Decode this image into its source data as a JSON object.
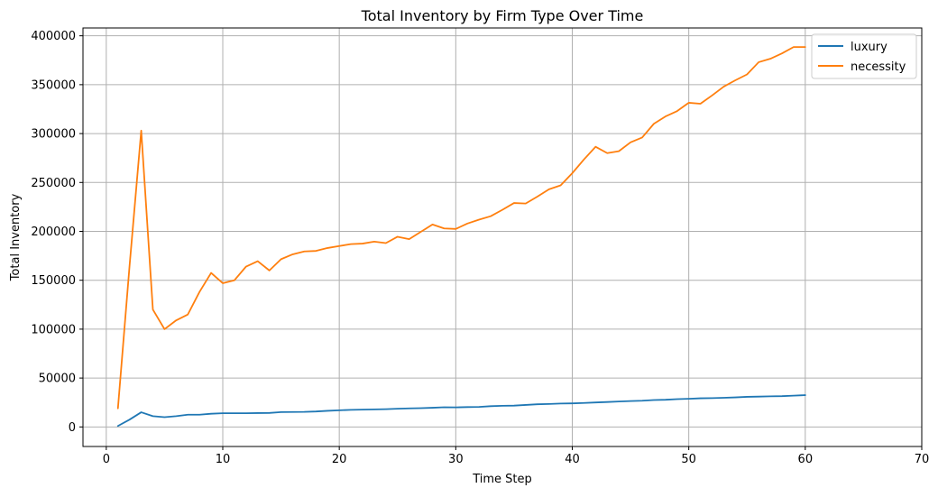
{
  "chart_data": {
    "type": "line",
    "title": "Total Inventory by Firm Type Over Time",
    "xlabel": "Time Step",
    "ylabel": "Total Inventory",
    "xlim": [
      -2,
      70
    ],
    "ylim": [
      -20000,
      408000
    ],
    "xticks": [
      0,
      10,
      20,
      30,
      40,
      50,
      60,
      70
    ],
    "yticks": [
      0,
      50000,
      100000,
      150000,
      200000,
      250000,
      300000,
      350000,
      400000
    ],
    "grid": true,
    "legend_position": "top-right",
    "series": [
      {
        "name": "luxury",
        "color": "#1f77b4",
        "x": [
          1,
          2,
          3,
          4,
          5,
          6,
          7,
          8,
          9,
          10,
          11,
          12,
          13,
          14,
          15,
          16,
          17,
          18,
          19,
          20,
          21,
          22,
          23,
          24,
          25,
          26,
          27,
          28,
          29,
          30,
          31,
          32,
          33,
          34,
          35,
          36,
          37,
          38,
          39,
          40,
          41,
          42,
          43,
          44,
          45,
          46,
          47,
          48,
          49,
          50,
          51,
          52,
          53,
          54,
          55,
          56,
          57,
          58,
          59,
          60
        ],
        "values": [
          1000,
          7500,
          15000,
          11000,
          10000,
          11000,
          12500,
          12500,
          13500,
          14000,
          14000,
          14000,
          14200,
          14300,
          15200,
          15300,
          15400,
          15800,
          16500,
          17000,
          17500,
          17700,
          17900,
          18200,
          18600,
          19000,
          19200,
          19600,
          20100,
          20000,
          20300,
          20500,
          21200,
          21600,
          21800,
          22500,
          23200,
          23500,
          23900,
          24100,
          24500,
          25000,
          25500,
          26000,
          26500,
          26800,
          27500,
          27800,
          28400,
          28800,
          29300,
          29500,
          29800,
          30200,
          30800,
          31000,
          31300,
          31500,
          32000,
          32500
        ]
      },
      {
        "name": "necessity",
        "color": "#ff7f0e",
        "x": [
          1,
          2,
          3,
          4,
          5,
          6,
          7,
          8,
          9,
          10,
          11,
          12,
          13,
          14,
          15,
          16,
          17,
          18,
          19,
          20,
          21,
          22,
          23,
          24,
          25,
          26,
          27,
          28,
          29,
          30,
          31,
          32,
          33,
          34,
          35,
          36,
          37,
          38,
          39,
          40,
          41,
          42,
          43,
          44,
          45,
          46,
          47,
          48,
          49,
          50,
          51,
          52,
          53,
          54,
          55,
          56,
          57,
          58,
          59,
          60
        ],
        "values": [
          19000,
          165000,
          303000,
          120000,
          100000,
          109000,
          115000,
          138000,
          157500,
          147000,
          150000,
          164000,
          169500,
          160000,
          171500,
          176500,
          179500,
          180000,
          183000,
          185000,
          187000,
          187500,
          189500,
          188000,
          194500,
          192000,
          199500,
          207000,
          203000,
          202500,
          208000,
          212000,
          215500,
          222000,
          229000,
          228500,
          235500,
          243000,
          247000,
          259500,
          273500,
          286500,
          280000,
          282000,
          291000,
          296000,
          310000,
          317500,
          323000,
          331500,
          330500,
          339000,
          348000,
          354500,
          360500,
          373000,
          376500,
          382000,
          388500,
          388500
        ]
      }
    ]
  }
}
